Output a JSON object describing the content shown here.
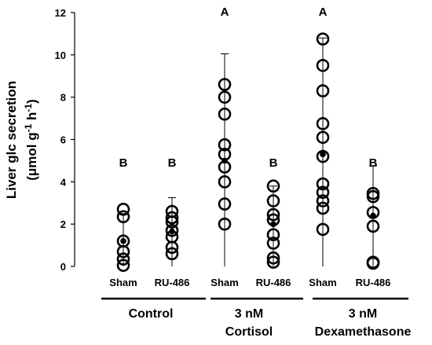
{
  "chart_data": {
    "type": "scatter",
    "ylabel_line1": "Liver glc secretion",
    "ylabel_line2_prefix": "(μmol g",
    "ylabel_line2_sup1": "-1",
    "ylabel_line2_mid": " h",
    "ylabel_line2_sup2": "-1",
    "ylabel_line2_suffix": ")",
    "ylim": [
      0,
      12
    ],
    "yticks": [
      "0",
      "2",
      "4",
      "6",
      "8",
      "10",
      "12"
    ],
    "groups": [
      {
        "label": "Sham",
        "mean": 1.2,
        "sd_upper": 2.5,
        "letter": "B",
        "points": [
          0.05,
          0.35,
          0.7,
          1.2,
          2.35,
          2.7
        ]
      },
      {
        "label": "RU-486",
        "mean": 1.65,
        "sd_upper": 3.25,
        "letter": "B",
        "points": [
          0.6,
          0.9,
          1.4,
          1.7,
          2.1,
          2.3,
          2.6
        ]
      },
      {
        "label": "Sham",
        "mean": 5.0,
        "sd_upper": 10.05,
        "letter": "A",
        "points": [
          2.0,
          2.95,
          4.0,
          4.7,
          5.3,
          5.75,
          7.2,
          8.0,
          8.6
        ]
      },
      {
        "label": "RU-486",
        "mean": 2.0,
        "sd_upper": 3.8,
        "letter": "B",
        "points": [
          0.2,
          0.4,
          1.1,
          1.5,
          2.2,
          2.45,
          3.1,
          3.8
        ]
      },
      {
        "label": "Sham",
        "mean": 5.3,
        "sd_upper": 10.8,
        "letter": "A",
        "points": [
          1.75,
          2.75,
          3.1,
          3.5,
          3.9,
          5.2,
          6.1,
          6.75,
          8.3,
          9.5,
          10.75
        ]
      },
      {
        "label": "RU-486",
        "mean": 2.4,
        "sd_upper": 4.75,
        "letter": "B",
        "points": [
          0.15,
          0.2,
          1.9,
          2.55,
          3.3,
          3.45
        ]
      }
    ],
    "conditions": [
      "Control",
      "3 nM",
      "Cortisol",
      "3 nM",
      "Dexamethasone"
    ]
  }
}
